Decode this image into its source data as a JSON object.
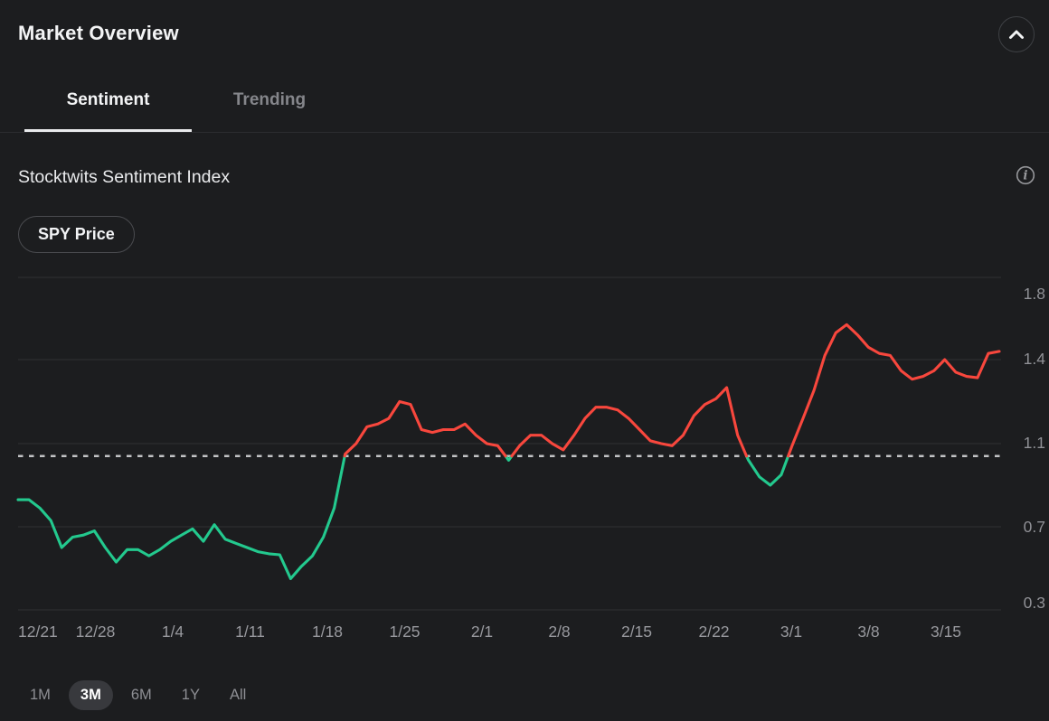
{
  "theme": {
    "background": "#1c1d1f",
    "text_primary": "#f3f4f5",
    "text_secondary": "#8e8f94",
    "divider": "#2b2c2f",
    "grid_line": "#2f3133",
    "green": "#23c98e",
    "red": "#f8473d",
    "threshold_dotted": "#c2c3c5",
    "active_pill_bg": "#38393d"
  },
  "header": {
    "title": "Market Overview",
    "collapse_icon": "chevron-up"
  },
  "tabs": [
    {
      "label": "Sentiment",
      "active": true
    },
    {
      "label": "Trending",
      "active": false
    }
  ],
  "section": {
    "title": "Stocktwits Sentiment Index",
    "info_icon": "info-circle"
  },
  "legend_chip": "SPY Price",
  "range_selector": [
    {
      "label": "1M",
      "active": false
    },
    {
      "label": "3M",
      "active": true
    },
    {
      "label": "6M",
      "active": false
    },
    {
      "label": "1Y",
      "active": false
    },
    {
      "label": "All",
      "active": false
    }
  ],
  "chart_data": {
    "type": "line",
    "title": "Stocktwits Sentiment Index",
    "x_tick_labels": [
      "12/21",
      "12/28",
      "1/4",
      "1/11",
      "1/18",
      "1/25",
      "2/1",
      "2/8",
      "2/15",
      "2/22",
      "3/1",
      "3/8",
      "3/15"
    ],
    "y_tick_labels": [
      1.8,
      1.4,
      1.1,
      0.7,
      0.3
    ],
    "ylim": [
      0.3,
      1.8
    ],
    "grid": true,
    "legend_position": "top-left",
    "threshold_line": {
      "value": 1.04,
      "style": "dotted"
    },
    "color_rule": {
      "above_threshold": "#f8473d",
      "below_threshold": "#23c98e"
    },
    "series": [
      {
        "name": "Stocktwits Sentiment Index",
        "frequency": "daily",
        "start": "12/21",
        "values": [
          0.83,
          0.83,
          0.79,
          0.73,
          0.6,
          0.65,
          0.66,
          0.68,
          0.6,
          0.53,
          0.59,
          0.59,
          0.56,
          0.59,
          0.63,
          0.66,
          0.69,
          0.63,
          0.71,
          0.64,
          0.62,
          0.6,
          0.58,
          0.57,
          0.565,
          0.45,
          0.51,
          0.56,
          0.65,
          0.79,
          1.05,
          1.1,
          1.16,
          1.17,
          1.19,
          1.25,
          1.24,
          1.15,
          1.14,
          1.15,
          1.15,
          1.17,
          1.13,
          1.1,
          1.09,
          1.02,
          1.09,
          1.13,
          1.13,
          1.1,
          1.07,
          1.13,
          1.19,
          1.23,
          1.23,
          1.22,
          1.19,
          1.15,
          1.11,
          1.1,
          1.09,
          1.13,
          1.2,
          1.24,
          1.26,
          1.3,
          1.13,
          1.02,
          0.94,
          0.9,
          0.95,
          1.09,
          1.19,
          1.29,
          1.42,
          1.53,
          1.57,
          1.52,
          1.46,
          1.43,
          1.42,
          1.36,
          1.33,
          1.34,
          1.36,
          1.4,
          1.355,
          1.34,
          1.335,
          1.43,
          1.44
        ]
      }
    ]
  }
}
